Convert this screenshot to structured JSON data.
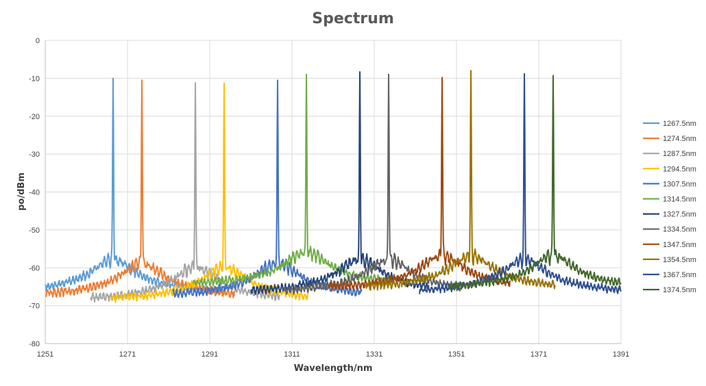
{
  "chart_data": {
    "type": "line",
    "title": "Spectrum",
    "xlabel": "Wavelength/nm",
    "ylabel": "po/dBm",
    "xlim": [
      1251,
      1391
    ],
    "ylim": [
      -80,
      0
    ],
    "x_ticks": [
      "1251",
      "1271",
      "1291",
      "1311",
      "1331",
      "1351",
      "1371",
      "1391"
    ],
    "y_ticks": [
      "0",
      "-10",
      "-20",
      "-30",
      "-40",
      "-50",
      "-60",
      "-70",
      "-80"
    ],
    "grid": true,
    "legend_position": "right",
    "series": [
      {
        "name": "1267.5nm",
        "color": "#5B9BD5",
        "peak_x": 1267.5,
        "peak_y": -10,
        "x_range": [
          1251,
          1295
        ],
        "noise_floor": -62
      },
      {
        "name": "1274.5nm",
        "color": "#ED7D31",
        "peak_x": 1274.5,
        "peak_y": -10.5,
        "x_range": [
          1251,
          1297
        ],
        "noise_floor": -63
      },
      {
        "name": "1287.5nm",
        "color": "#A5A5A5",
        "peak_x": 1287.5,
        "peak_y": -11.2,
        "x_range": [
          1262,
          1308
        ],
        "noise_floor": -64
      },
      {
        "name": "1294.5nm",
        "color": "#FFC000",
        "peak_x": 1294.5,
        "peak_y": -11.3,
        "x_range": [
          1267,
          1315
        ],
        "noise_floor": -64
      },
      {
        "name": "1307.5nm",
        "color": "#4472C4",
        "peak_x": 1307.5,
        "peak_y": -10.5,
        "x_range": [
          1282,
          1328
        ],
        "noise_floor": -63
      },
      {
        "name": "1314.5nm",
        "color": "#70AD47",
        "peak_x": 1314.5,
        "peak_y": -9,
        "x_range": [
          1287,
          1335
        ],
        "noise_floor": -60
      },
      {
        "name": "1327.5nm",
        "color": "#264478",
        "peak_x": 1327.5,
        "peak_y": -8.3,
        "x_range": [
          1301,
          1344
        ],
        "noise_floor": -62
      },
      {
        "name": "1334.5nm",
        "color": "#636363",
        "peak_x": 1334.5,
        "peak_y": -9,
        "x_range": [
          1309,
          1352
        ],
        "noise_floor": -62
      },
      {
        "name": "1347.5nm",
        "color": "#9E480E",
        "peak_x": 1347.5,
        "peak_y": -9.8,
        "x_range": [
          1320,
          1364
        ],
        "noise_floor": -61
      },
      {
        "name": "1354.5nm",
        "color": "#997300",
        "peak_x": 1354.5,
        "peak_y": -8,
        "x_range": [
          1329,
          1375
        ],
        "noise_floor": -61
      },
      {
        "name": "1367.5nm",
        "color": "#2E4F91",
        "peak_x": 1367.5,
        "peak_y": -8.8,
        "x_range": [
          1342,
          1391
        ],
        "noise_floor": -62
      },
      {
        "name": "1374.5nm",
        "color": "#43682B",
        "peak_x": 1374.5,
        "peak_y": -9.3,
        "x_range": [
          1349,
          1391
        ],
        "noise_floor": -61
      }
    ]
  }
}
